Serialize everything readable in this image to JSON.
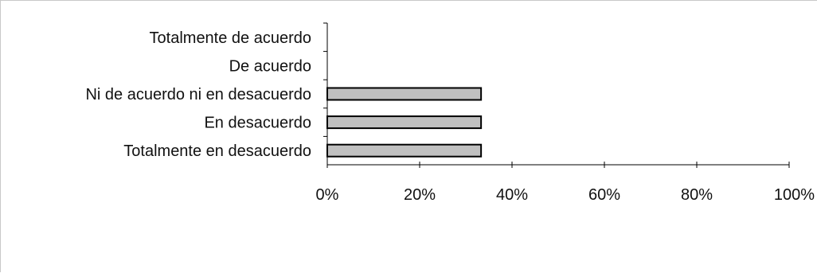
{
  "chart_data": {
    "type": "bar",
    "orientation": "horizontal",
    "categories": [
      "Totalmente de acuerdo",
      "De acuerdo",
      "Ni de acuerdo ni en desacuerdo",
      "En desacuerdo",
      "Totalmente en desacuerdo"
    ],
    "values": [
      0,
      0,
      33.3,
      33.3,
      33.3
    ],
    "xlim": [
      0,
      100
    ],
    "x_ticks": [
      "0%",
      "20%",
      "40%",
      "60%",
      "80%",
      "100%"
    ],
    "x_tick_values": [
      0,
      20,
      40,
      60,
      80,
      100
    ],
    "title": "",
    "xlabel": "",
    "ylabel": "",
    "grid": false,
    "colors": {
      "bar_fill": "#c0c0c0",
      "bar_stroke": "#000000",
      "axis": "#000000"
    }
  }
}
